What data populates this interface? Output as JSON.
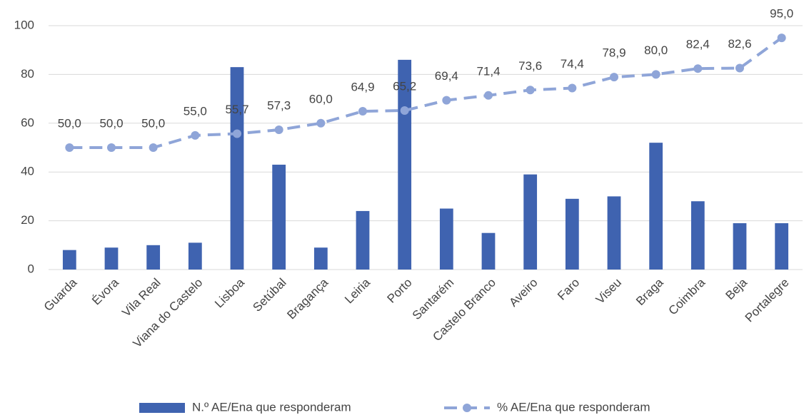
{
  "chart_data": {
    "type": "bar",
    "categories": [
      "Guarda",
      "Évora",
      "Vila Real",
      "Viana do Castelo",
      "Lisboa",
      "Setúbal",
      "Bragança",
      "Leiria",
      "Porto",
      "Santarém",
      "Castelo Branco",
      "Aveiro",
      "Faro",
      "Viseu",
      "Braga",
      "Coimbra",
      "Beja",
      "Portalegre"
    ],
    "series": [
      {
        "name": "N.º AE/Ena que responderam",
        "type": "bar",
        "color": "#3f63b0",
        "values": [
          8,
          9,
          10,
          11,
          83,
          43,
          9,
          24,
          86,
          25,
          15,
          39,
          29,
          30,
          52,
          28,
          19,
          19
        ]
      },
      {
        "name": "% AE/Ena que responderam",
        "type": "line",
        "color": "#8fa5d8",
        "dashed": true,
        "markers": true,
        "values": [
          50.0,
          50.0,
          50.0,
          55.0,
          55.7,
          57.3,
          60.0,
          64.9,
          65.2,
          69.4,
          71.4,
          73.6,
          74.4,
          78.9,
          80.0,
          82.4,
          82.6,
          95.0
        ],
        "value_labels": [
          "50,0",
          "50,0",
          "50,0",
          "55,0",
          "55,7",
          "57,3",
          "60,0",
          "64,9",
          "65,2",
          "69,4",
          "71,4",
          "73,6",
          "74,4",
          "78,9",
          "80,0",
          "82,4",
          "82,6",
          "95,0"
        ]
      }
    ],
    "ylim": [
      0,
      100
    ],
    "yticks": [
      0,
      20,
      40,
      60,
      80,
      100
    ],
    "grid": true,
    "legend": "bottom"
  }
}
